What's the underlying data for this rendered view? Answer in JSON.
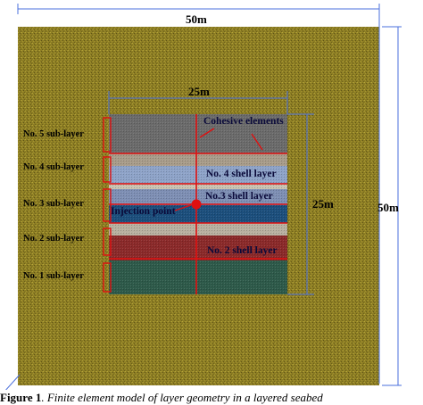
{
  "figure": {
    "dimension_labels": {
      "outer_width": "50m",
      "outer_height": "50m",
      "inner_width": "25m",
      "inner_height": "25m"
    },
    "sub_layers": [
      "No. 5 sub-layer",
      "No. 4 sub-layer",
      "No. 3 sub-layer",
      "No. 2 sub-layer",
      "No. 1 sub-layer"
    ],
    "shell_layers": {
      "no4": "No. 4 shell layer",
      "no3": "No.3 shell layer",
      "no2": "No. 2 shell layer"
    },
    "annotations": {
      "cohesive": "Cohesive elements",
      "injection": "Injection point"
    },
    "layer_colors": {
      "background": "#8a7a22",
      "sub5": "#6b6b6b",
      "gap54": "#a89c8a",
      "sub4": "#8ea3c8",
      "gap43": "#c9c3b2",
      "sub3_top": "#7e8fb4",
      "sub3_bottom": "#1c4f7d",
      "gap32": "#b8b0a0",
      "sub2": "#8b2a2a",
      "sub1": "#2e5a4a",
      "cut_lines": "#e01010",
      "dimension_lines": "#4a6fdc"
    }
  },
  "caption": {
    "label": "Figure 1",
    "text": ". Finite element model of layer geometry in a layered seabed"
  }
}
